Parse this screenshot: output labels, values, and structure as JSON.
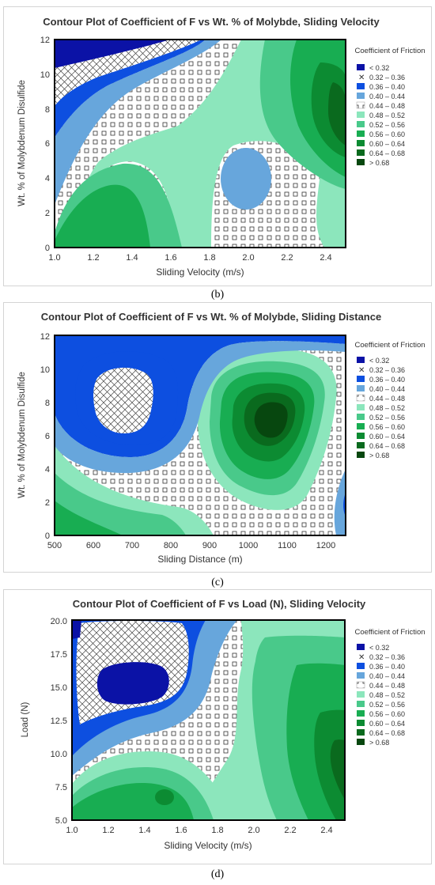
{
  "colors": {
    "c1": "#0b12a6",
    "c3": "#0d4fe0",
    "c4": "#67a6dc",
    "c6": "#8ce6bc",
    "c7": "#49c98a",
    "c8": "#18ad52",
    "c9": "#0c8b32",
    "c10": "#0a6a1e",
    "c11": "#07470f"
  },
  "chart_data": [
    {
      "type": "contour",
      "title": "Contour Plot of Coefficient of F vs Wt. % of Molybde, Sliding Velocity",
      "xlabel": "Sliding Velocity (m/s)",
      "ylabel": "Wt. % of Molybdenum Disulfide",
      "x_ticks": [
        "1.0",
        "1.2",
        "1.4",
        "1.6",
        "1.8",
        "2.0",
        "2.2",
        "2.4"
      ],
      "y_ticks": [
        "0",
        "2",
        "4",
        "6",
        "8",
        "10",
        "12"
      ],
      "xlim": [
        1.0,
        2.5
      ],
      "ylim": [
        0,
        12
      ],
      "legend": {
        "title": "Coefficient of Friction",
        "placement": "right",
        "entries": [
          "<  0.32",
          "0.32 – 0.36",
          "0.36 – 0.40",
          "0.40 – 0.44",
          "0.44 – 0.48",
          "0.48 – 0.52",
          "0.52 – 0.56",
          "0.56 – 0.60",
          "0.60 – 0.64",
          "0.64 – 0.68",
          ">  0.68"
        ]
      },
      "caption": "(b)"
    },
    {
      "type": "contour",
      "title": "Contour Plot of Coefficient of F vs Wt. % of Molybde, Sliding Distance",
      "xlabel": "Sliding Distance (m)",
      "ylabel": "Wt. % of Molybdenum Disulfide",
      "x_ticks": [
        "500",
        "600",
        "700",
        "800",
        "900",
        "1000",
        "1100",
        "1200"
      ],
      "y_ticks": [
        "0",
        "2",
        "4",
        "6",
        "8",
        "10",
        "12"
      ],
      "xlim": [
        500,
        1250
      ],
      "ylim": [
        0,
        12
      ],
      "legend": {
        "title": "Coefficient of Friction",
        "placement": "right",
        "entries": [
          "<  0.32",
          "0.32 – 0.36",
          "0.36 – 0.40",
          "0.40 – 0.44",
          "0.44 – 0.48",
          "0.48 – 0.52",
          "0.52 – 0.56",
          "0.56 – 0.60",
          "0.60 – 0.64",
          "0.64 – 0.68",
          ">  0.68"
        ]
      },
      "caption": "(c)"
    },
    {
      "type": "contour",
      "title": "Contour Plot of Coefficient of F vs Load (N), Sliding Velocity",
      "xlabel": "Sliding Velocity (m/s)",
      "ylabel": "Load (N)",
      "x_ticks": [
        "1.0",
        "1.2",
        "1.4",
        "1.6",
        "1.8",
        "2.0",
        "2.2",
        "2.4"
      ],
      "y_ticks": [
        "5.0",
        "7.5",
        "10.0",
        "12.5",
        "15.0",
        "17.5",
        "20.0"
      ],
      "xlim": [
        1.0,
        2.5
      ],
      "ylim": [
        5.0,
        20.0
      ],
      "legend": {
        "title": "Coefficient of Friction",
        "placement": "right",
        "entries": [
          "<  0.32",
          "0.32 – 0.36",
          "0.36 – 0.40",
          "0.40 – 0.44",
          "0.44 – 0.48",
          "0.48 – 0.52",
          "0.52 – 0.56",
          "0.56 – 0.60",
          "0.60 – 0.64",
          "0.64 – 0.68",
          ">  0.68"
        ]
      },
      "caption": "(d)"
    }
  ]
}
